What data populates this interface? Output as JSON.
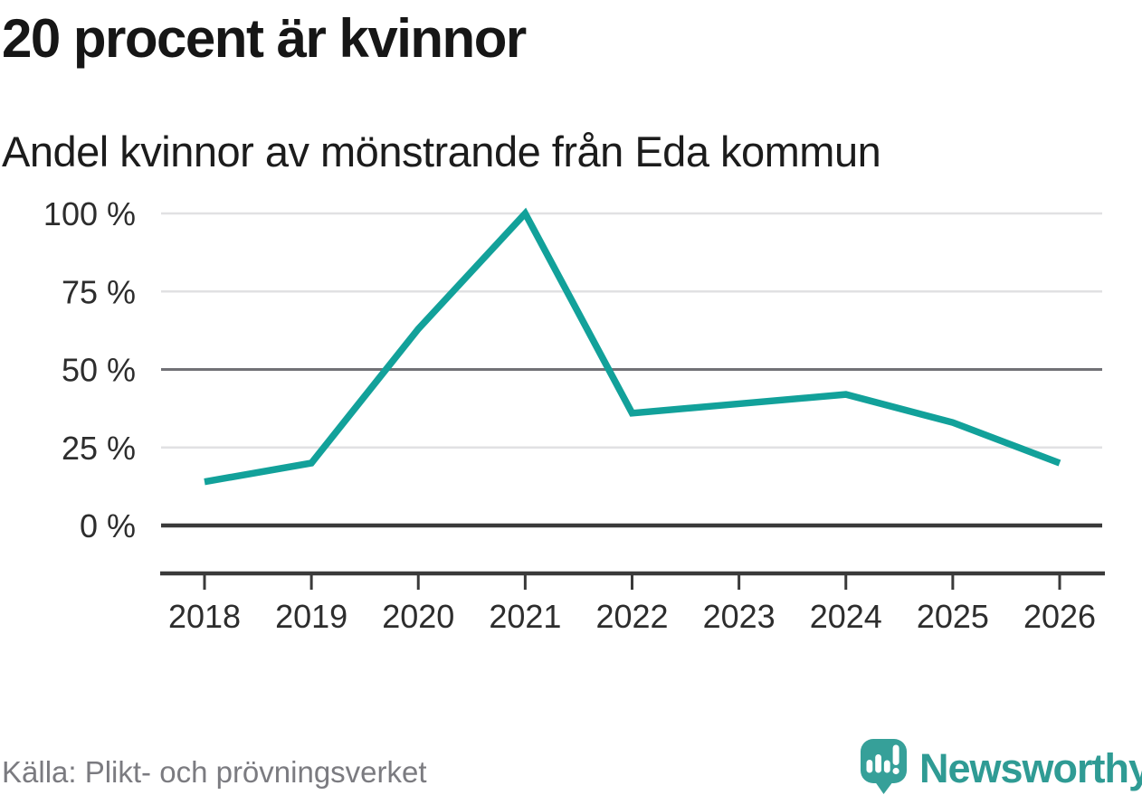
{
  "header": {
    "title": "20 procent är kvinnor",
    "subtitle": "Andel kvinnor av mönstrande från Eda kommun"
  },
  "chart_data": {
    "type": "line",
    "title": "20 procent är kvinnor",
    "subtitle": "Andel kvinnor av mönstrande från Eda kommun",
    "x": [
      2018,
      2019,
      2020,
      2021,
      2022,
      2023,
      2024,
      2025,
      2026
    ],
    "series": [
      {
        "name": "Andel kvinnor av mönstrande från Eda kommun",
        "values": [
          14,
          20,
          63,
          100,
          36,
          39,
          42,
          33,
          20
        ],
        "color": "#12a19a"
      }
    ],
    "unit": "%",
    "ylim": [
      0,
      100
    ],
    "yticks": [
      0,
      25,
      50,
      75,
      100
    ],
    "ytick_labels": [
      "0 %",
      "25 %",
      "50 %",
      "75 %",
      "100 %"
    ],
    "xtick_labels": [
      "2018",
      "2019",
      "2020",
      "2021",
      "2022",
      "2023",
      "2024",
      "2025",
      "2026"
    ],
    "grid": "horizontal-only",
    "legend": "none"
  },
  "footer": {
    "source": "Källa: Plikt- och prövningsverket",
    "brand": "Newsworthy"
  },
  "colors": {
    "line": "#12a19a",
    "brand": "#2f9b94",
    "logo_bubble": "#36a099",
    "grid_light": "#e1e1e3",
    "grid_mid": "#717176",
    "axis_dark": "#3a3a3a",
    "axis_label": "#2d2d2d",
    "title_text": "#161616",
    "source_text": "#7b7b80"
  }
}
